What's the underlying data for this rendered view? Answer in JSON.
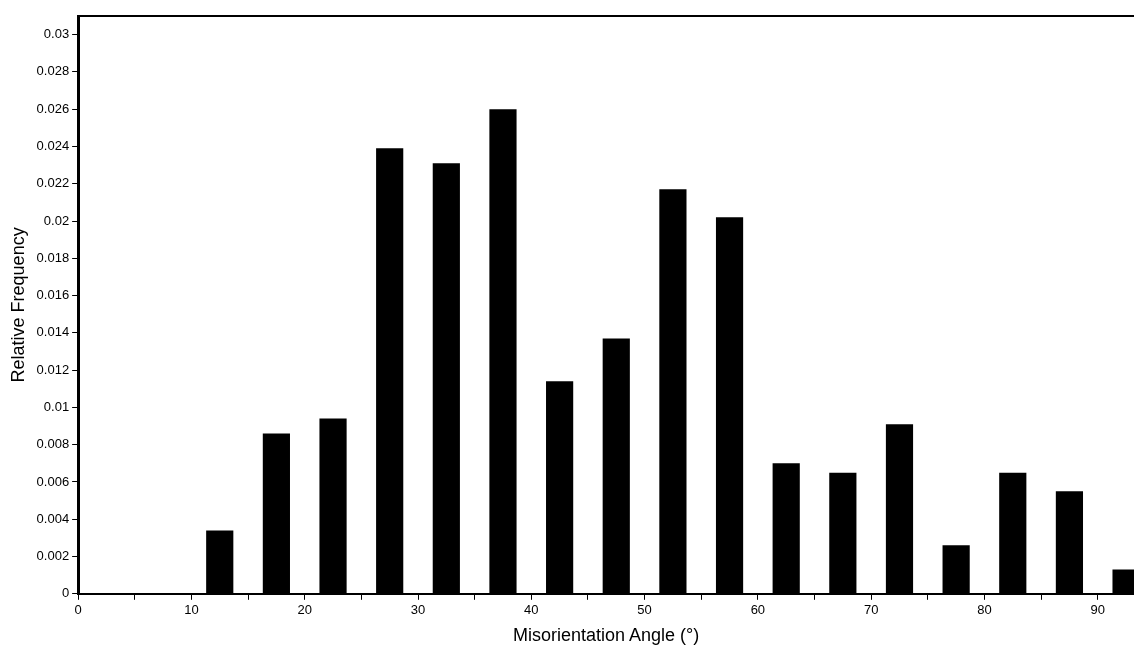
{
  "chart_data": {
    "type": "bar",
    "xlabel": "Misorientation Angle (°)",
    "ylabel": "Relative Frequency",
    "x": [
      12.5,
      17.5,
      22.5,
      27.5,
      32.5,
      37.5,
      42.5,
      47.5,
      52.5,
      57.5,
      62.5,
      67.5,
      72.5,
      77.5,
      82.5,
      87.5,
      92.5
    ],
    "series": [
      {
        "color": "#000000",
        "values": [
          0.0034,
          0.0086,
          0.0094,
          0.0239,
          0.0231,
          0.026,
          0.0114,
          0.0137,
          0.0217,
          0.0202,
          0.007,
          0.0065,
          0.0091,
          0.0026,
          0.0065,
          0.0055,
          0.0013
        ]
      }
    ],
    "xlim": [
      0,
      93.2
    ],
    "xticks": [
      0,
      {
        "value": 5,
        "label": null
      },
      10,
      {
        "value": 15,
        "label": null
      },
      20,
      {
        "value": 25,
        "label": null
      },
      30,
      {
        "value": 35,
        "label": null
      },
      40,
      {
        "value": 45,
        "label": null
      },
      50,
      {
        "value": 55,
        "label": null
      },
      60,
      {
        "value": 65,
        "label": null
      },
      70,
      {
        "value": 75,
        "label": null
      },
      80,
      {
        "value": 85,
        "label": null
      },
      90
    ],
    "ylim": [
      0,
      0.031
    ],
    "yticks": [
      0,
      0.002,
      0.004,
      0.006,
      0.008,
      0.01,
      0.012,
      0.014,
      0.016,
      0.018,
      0.02,
      0.022,
      0.024,
      0.026,
      0.028,
      0.03
    ],
    "grid": false,
    "legend": false
  }
}
